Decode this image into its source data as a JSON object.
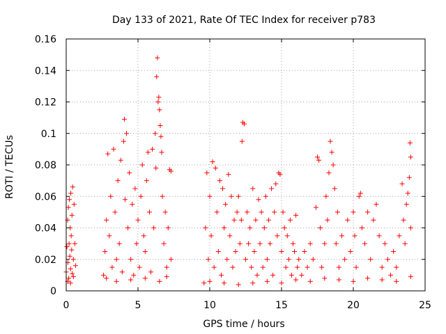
{
  "chart_data": {
    "type": "scatter",
    "title": "Day 133 of 2021, Rate Of TEC Index for receiver p783",
    "xlabel": "GPS time / hours",
    "ylabel": "ROTI / TECUs",
    "xlim": [
      0,
      25
    ],
    "ylim": [
      0,
      0.16
    ],
    "x_ticks": [
      0,
      5,
      10,
      15,
      20,
      25
    ],
    "x_tick_labels": [
      "0",
      "5",
      "10",
      "15",
      "20",
      "25"
    ],
    "y_ticks": [
      0,
      0.02,
      0.04,
      0.06,
      0.08,
      0.1,
      0.12,
      0.14,
      0.16
    ],
    "y_tick_labels": [
      "0",
      "0.02",
      "0.04",
      "0.06",
      "0.08",
      "0.1",
      "0.12",
      "0.14",
      "0.16"
    ],
    "grid": true,
    "marker": "+",
    "marker_color": "#ff0000",
    "series": [
      {
        "name": "ROTI",
        "points": [
          [
            0.0,
            0.012
          ],
          [
            0.05,
            0.028
          ],
          [
            0.1,
            0.045
          ],
          [
            0.12,
            0.018
          ],
          [
            0.15,
            0.053
          ],
          [
            0.18,
            0.008
          ],
          [
            0.2,
            0.03
          ],
          [
            0.22,
            0.058
          ],
          [
            0.25,
            0.022
          ],
          [
            0.28,
            0.04
          ],
          [
            0.3,
            0.014
          ],
          [
            0.32,
            0.062
          ],
          [
            0.35,
            0.035
          ],
          [
            0.38,
            0.026
          ],
          [
            0.4,
            0.048
          ],
          [
            0.42,
            0.011
          ],
          [
            0.45,
            0.066
          ],
          [
            0.5,
            0.02
          ],
          [
            0.55,
            0.055
          ],
          [
            0.6,
            0.03
          ],
          [
            0.65,
            0.016
          ],
          [
            0.1,
            0.006
          ],
          [
            0.3,
            0.005
          ],
          [
            0.5,
            0.009
          ],
          [
            2.6,
            0.01
          ],
          [
            2.7,
            0.025
          ],
          [
            2.8,
            0.045
          ],
          [
            2.9,
            0.087
          ],
          [
            3.0,
            0.035
          ],
          [
            3.1,
            0.06
          ],
          [
            3.2,
            0.015
          ],
          [
            3.3,
            0.09
          ],
          [
            3.4,
            0.05
          ],
          [
            3.5,
            0.02
          ],
          [
            3.6,
            0.07
          ],
          [
            3.7,
            0.03
          ],
          [
            3.8,
            0.083
          ],
          [
            3.9,
            0.012
          ],
          [
            4.0,
            0.095
          ],
          [
            4.05,
            0.109
          ],
          [
            4.1,
            0.058
          ],
          [
            4.2,
            0.1
          ],
          [
            4.3,
            0.04
          ],
          [
            4.4,
            0.075
          ],
          [
            4.5,
            0.02
          ],
          [
            4.6,
            0.055
          ],
          [
            4.7,
            0.01
          ],
          [
            4.8,
            0.065
          ],
          [
            4.9,
            0.03
          ],
          [
            5.0,
            0.045
          ],
          [
            5.1,
            0.015
          ],
          [
            5.2,
            0.06
          ],
          [
            5.3,
            0.08
          ],
          [
            5.4,
            0.035
          ],
          [
            5.5,
            0.025
          ],
          [
            5.6,
            0.07
          ],
          [
            5.7,
            0.088
          ],
          [
            5.8,
            0.05
          ],
          [
            5.9,
            0.012
          ],
          [
            6.0,
            0.09
          ],
          [
            6.1,
            0.04
          ],
          [
            6.2,
            0.1
          ],
          [
            6.25,
            0.078
          ],
          [
            6.3,
            0.136
          ],
          [
            6.35,
            0.148
          ],
          [
            6.4,
            0.12
          ],
          [
            6.45,
            0.123
          ],
          [
            6.5,
            0.115
          ],
          [
            6.55,
            0.105
          ],
          [
            6.6,
            0.098
          ],
          [
            6.65,
            0.088
          ],
          [
            6.7,
            0.06
          ],
          [
            6.8,
            0.03
          ],
          [
            6.9,
            0.05
          ],
          [
            7.0,
            0.015
          ],
          [
            7.1,
            0.04
          ],
          [
            7.2,
            0.077
          ],
          [
            7.3,
            0.076
          ],
          [
            7.3,
            0.02
          ],
          [
            2.8,
            0.008
          ],
          [
            3.5,
            0.006
          ],
          [
            4.5,
            0.007
          ],
          [
            5.5,
            0.008
          ],
          [
            6.5,
            0.006
          ],
          [
            7.0,
            0.009
          ],
          [
            9.6,
            0.005
          ],
          [
            9.7,
            0.04
          ],
          [
            9.8,
            0.075
          ],
          [
            9.9,
            0.02
          ],
          [
            10.0,
            0.06
          ],
          [
            10.1,
            0.035
          ],
          [
            10.2,
            0.082
          ],
          [
            10.3,
            0.015
          ],
          [
            10.4,
            0.078
          ],
          [
            10.5,
            0.05
          ],
          [
            10.6,
            0.025
          ],
          [
            10.7,
            0.07
          ],
          [
            10.8,
            0.01
          ],
          [
            10.9,
            0.065
          ],
          [
            11.0,
            0.04
          ],
          [
            11.1,
            0.055
          ],
          [
            11.2,
            0.02
          ],
          [
            11.3,
            0.074
          ],
          [
            11.4,
            0.035
          ],
          [
            11.5,
            0.06
          ],
          [
            11.6,
            0.015
          ],
          [
            11.7,
            0.045
          ],
          [
            11.8,
            0.025
          ],
          [
            11.9,
            0.05
          ],
          [
            12.0,
            0.06
          ],
          [
            12.1,
            0.03
          ],
          [
            12.2,
            0.045
          ],
          [
            12.25,
            0.095
          ],
          [
            12.3,
            0.107
          ],
          [
            12.4,
            0.106
          ],
          [
            12.5,
            0.02
          ],
          [
            12.6,
            0.05
          ],
          [
            12.7,
            0.03
          ],
          [
            12.8,
            0.04
          ],
          [
            12.9,
            0.015
          ],
          [
            13.0,
            0.065
          ],
          [
            13.1,
            0.025
          ],
          [
            13.2,
            0.045
          ],
          [
            13.3,
            0.01
          ],
          [
            13.4,
            0.058
          ],
          [
            13.5,
            0.03
          ],
          [
            13.6,
            0.05
          ],
          [
            13.7,
            0.015
          ],
          [
            13.8,
            0.04
          ],
          [
            13.9,
            0.06
          ],
          [
            14.0,
            0.02
          ],
          [
            14.1,
            0.045
          ],
          [
            14.2,
            0.03
          ],
          [
            14.3,
            0.065
          ],
          [
            14.4,
            0.01
          ],
          [
            14.5,
            0.05
          ],
          [
            14.6,
            0.068
          ],
          [
            14.7,
            0.035
          ],
          [
            14.8,
            0.075
          ],
          [
            14.9,
            0.074
          ],
          [
            15.0,
            0.025
          ],
          [
            15.1,
            0.05
          ],
          [
            15.2,
            0.04
          ],
          [
            15.3,
            0.015
          ],
          [
            15.4,
            0.035
          ],
          [
            15.5,
            0.02
          ],
          [
            15.6,
            0.045
          ],
          [
            15.7,
            0.01
          ],
          [
            15.8,
            0.03
          ],
          [
            15.9,
            0.025
          ],
          [
            16.0,
            0.048
          ],
          [
            16.1,
            0.015
          ],
          [
            16.2,
            0.02
          ],
          [
            16.4,
            0.01
          ],
          [
            16.6,
            0.025
          ],
          [
            16.8,
            0.015
          ],
          [
            17.0,
            0.03
          ],
          [
            17.2,
            0.02
          ],
          [
            17.4,
            0.053
          ],
          [
            17.5,
            0.085
          ],
          [
            17.6,
            0.083
          ],
          [
            17.7,
            0.04
          ],
          [
            17.8,
            0.015
          ],
          [
            18.0,
            0.03
          ],
          [
            18.1,
            0.06
          ],
          [
            18.2,
            0.045
          ],
          [
            18.3,
            0.075
          ],
          [
            18.4,
            0.095
          ],
          [
            18.5,
            0.088
          ],
          [
            18.6,
            0.08
          ],
          [
            18.7,
            0.065
          ],
          [
            18.8,
            0.03
          ],
          [
            18.9,
            0.05
          ],
          [
            19.0,
            0.015
          ],
          [
            19.2,
            0.035
          ],
          [
            19.4,
            0.02
          ],
          [
            19.6,
            0.045
          ],
          [
            19.8,
            0.025
          ],
          [
            20.0,
            0.05
          ],
          [
            20.1,
            0.035
          ],
          [
            20.2,
            0.015
          ],
          [
            20.4,
            0.06
          ],
          [
            20.5,
            0.062
          ],
          [
            20.6,
            0.04
          ],
          [
            20.8,
            0.03
          ],
          [
            21.0,
            0.05
          ],
          [
            21.2,
            0.02
          ],
          [
            21.4,
            0.045
          ],
          [
            21.6,
            0.055
          ],
          [
            21.8,
            0.035
          ],
          [
            22.0,
            0.015
          ],
          [
            22.2,
            0.03
          ],
          [
            22.4,
            0.02
          ],
          [
            22.6,
            0.01
          ],
          [
            22.8,
            0.025
          ],
          [
            23.0,
            0.015
          ],
          [
            23.2,
            0.035
          ],
          [
            23.4,
            0.068
          ],
          [
            23.5,
            0.045
          ],
          [
            23.6,
            0.03
          ],
          [
            23.7,
            0.055
          ],
          [
            23.8,
            0.062
          ],
          [
            23.9,
            0.072
          ],
          [
            23.95,
            0.094
          ],
          [
            24.0,
            0.085
          ],
          [
            24.0,
            0.04
          ],
          [
            10.0,
            0.006
          ],
          [
            11.0,
            0.005
          ],
          [
            12.0,
            0.004
          ],
          [
            13.0,
            0.005
          ],
          [
            14.0,
            0.006
          ],
          [
            15.0,
            0.005
          ],
          [
            16.0,
            0.007
          ],
          [
            17.0,
            0.006
          ],
          [
            18.0,
            0.008
          ],
          [
            19.0,
            0.007
          ],
          [
            20.0,
            0.006
          ],
          [
            21.0,
            0.008
          ],
          [
            22.0,
            0.007
          ],
          [
            23.0,
            0.006
          ],
          [
            24.0,
            0.009
          ]
        ]
      }
    ]
  }
}
